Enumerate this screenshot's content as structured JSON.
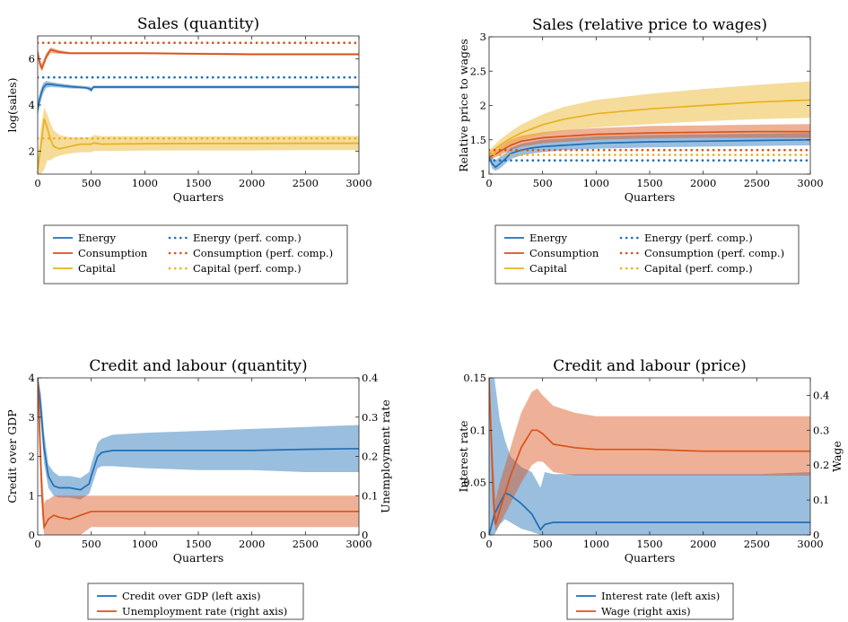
{
  "colors": {
    "energy": "#1f6fb5",
    "consumption": "#d95319",
    "capital": "#e8b120"
  },
  "chart_data": [
    {
      "type": "line",
      "title": "Sales (quantity)",
      "xlabel": "Quarters",
      "ylabel": "log(sales)",
      "xlim": [
        0,
        3000
      ],
      "ylim": [
        1,
        7
      ],
      "xticks": [
        0,
        500,
        1000,
        1500,
        2000,
        2500,
        3000
      ],
      "yticks": [
        2,
        4,
        6
      ],
      "grid": false,
      "legend_position": "below",
      "series": [
        {
          "name": "Energy",
          "color": "#1f6fb5",
          "style": "solid",
          "x": [
            0,
            20,
            50,
            80,
            120,
            200,
            300,
            450,
            490,
            500,
            520,
            700,
            1000,
            1500,
            2000,
            2500,
            3000
          ],
          "y": [
            3.8,
            4.3,
            4.75,
            4.9,
            4.9,
            4.85,
            4.8,
            4.75,
            4.7,
            4.65,
            4.78,
            4.78,
            4.78,
            4.78,
            4.78,
            4.78,
            4.78
          ],
          "band_low": [
            3.5,
            4.0,
            4.5,
            4.75,
            4.78,
            4.76,
            4.72,
            4.7,
            4.6,
            4.55,
            4.72,
            4.72,
            4.72,
            4.72,
            4.72,
            4.72,
            4.72
          ],
          "band_high": [
            4.1,
            4.55,
            4.95,
            5.05,
            5.0,
            4.94,
            4.88,
            4.82,
            4.8,
            4.75,
            4.84,
            4.84,
            4.84,
            4.84,
            4.84,
            4.84,
            4.84
          ]
        },
        {
          "name": "Consumption",
          "color": "#d95319",
          "style": "solid",
          "x": [
            0,
            20,
            40,
            80,
            120,
            200,
            300,
            500,
            1000,
            1500,
            2000,
            2500,
            3000
          ],
          "y": [
            6.3,
            5.8,
            5.6,
            6.1,
            6.4,
            6.3,
            6.25,
            6.25,
            6.25,
            6.22,
            6.2,
            6.2,
            6.2
          ],
          "band_low": [
            6.1,
            5.6,
            5.45,
            5.95,
            6.25,
            6.22,
            6.2,
            6.2,
            6.2,
            6.18,
            6.16,
            6.16,
            6.16
          ],
          "band_high": [
            6.5,
            6.0,
            5.8,
            6.25,
            6.5,
            6.38,
            6.3,
            6.3,
            6.3,
            6.27,
            6.25,
            6.25,
            6.25
          ]
        },
        {
          "name": "Capital",
          "color": "#e8b120",
          "style": "solid",
          "x": [
            0,
            30,
            60,
            90,
            120,
            150,
            200,
            300,
            400,
            500,
            520,
            600,
            1000,
            1500,
            2000,
            2500,
            3000
          ],
          "y": [
            1.2,
            2.2,
            3.4,
            3.0,
            2.5,
            2.2,
            2.1,
            2.2,
            2.3,
            2.3,
            2.35,
            2.3,
            2.32,
            2.33,
            2.33,
            2.34,
            2.34
          ],
          "band_low": [
            1.0,
            1.0,
            1.2,
            1.6,
            1.6,
            1.7,
            1.8,
            1.9,
            1.95,
            1.95,
            2.0,
            2.0,
            2.02,
            2.03,
            2.03,
            2.04,
            2.04
          ],
          "band_high": [
            1.6,
            3.0,
            3.9,
            3.6,
            3.2,
            2.9,
            2.7,
            2.6,
            2.6,
            2.6,
            2.7,
            2.65,
            2.65,
            2.65,
            2.65,
            2.66,
            2.66
          ]
        },
        {
          "name": "Energy (perf. comp.)",
          "color": "#1f6fb5",
          "style": "dotted",
          "x": [
            0,
            3000
          ],
          "y": [
            5.2,
            5.2
          ]
        },
        {
          "name": "Consumption (perf. comp.)",
          "color": "#d95319",
          "style": "dotted",
          "x": [
            0,
            3000
          ],
          "y": [
            6.7,
            6.7
          ]
        },
        {
          "name": "Capital (perf. comp.)",
          "color": "#e8b120",
          "style": "dotted",
          "x": [
            0,
            3000
          ],
          "y": [
            2.55,
            2.55
          ]
        }
      ]
    },
    {
      "type": "line",
      "title": "Sales (relative price to wages)",
      "xlabel": "Quarters",
      "ylabel": "Relative price to wages",
      "xlim": [
        0,
        3000
      ],
      "ylim": [
        1,
        3
      ],
      "xticks": [
        0,
        500,
        1000,
        1500,
        2000,
        2500,
        3000
      ],
      "yticks": [
        1,
        1.5,
        2,
        2.5,
        3
      ],
      "grid": false,
      "legend_position": "below",
      "series": [
        {
          "name": "Energy",
          "color": "#1f6fb5",
          "style": "solid",
          "x": [
            0,
            30,
            60,
            100,
            150,
            200,
            300,
            400,
            500,
            700,
            1000,
            1500,
            2000,
            2500,
            3000
          ],
          "y": [
            1.25,
            1.15,
            1.1,
            1.15,
            1.22,
            1.3,
            1.35,
            1.38,
            1.4,
            1.42,
            1.45,
            1.47,
            1.48,
            1.49,
            1.5
          ],
          "band_low": [
            1.2,
            1.08,
            1.05,
            1.08,
            1.15,
            1.22,
            1.27,
            1.3,
            1.32,
            1.35,
            1.37,
            1.39,
            1.4,
            1.41,
            1.42
          ],
          "band_high": [
            1.32,
            1.25,
            1.2,
            1.25,
            1.3,
            1.38,
            1.44,
            1.47,
            1.5,
            1.52,
            1.55,
            1.57,
            1.58,
            1.59,
            1.6
          ]
        },
        {
          "name": "Consumption",
          "color": "#d95319",
          "style": "solid",
          "x": [
            0,
            50,
            100,
            200,
            300,
            500,
            700,
            1000,
            1500,
            2000,
            2500,
            3000
          ],
          "y": [
            1.25,
            1.28,
            1.33,
            1.42,
            1.48,
            1.53,
            1.55,
            1.58,
            1.6,
            1.61,
            1.62,
            1.62
          ],
          "band_low": [
            1.22,
            1.24,
            1.27,
            1.35,
            1.4,
            1.45,
            1.47,
            1.5,
            1.52,
            1.53,
            1.53,
            1.53
          ],
          "band_high": [
            1.3,
            1.33,
            1.4,
            1.5,
            1.56,
            1.61,
            1.64,
            1.67,
            1.7,
            1.71,
            1.72,
            1.73
          ]
        },
        {
          "name": "Capital",
          "color": "#e8b120",
          "style": "solid",
          "x": [
            0,
            50,
            100,
            200,
            300,
            500,
            700,
            1000,
            1500,
            2000,
            2500,
            3000
          ],
          "y": [
            1.3,
            1.36,
            1.42,
            1.52,
            1.6,
            1.72,
            1.8,
            1.88,
            1.95,
            2.0,
            2.05,
            2.08
          ],
          "band_low": [
            1.26,
            1.3,
            1.35,
            1.44,
            1.5,
            1.58,
            1.63,
            1.68,
            1.73,
            1.77,
            1.8,
            1.82
          ],
          "band_high": [
            1.35,
            1.42,
            1.5,
            1.62,
            1.72,
            1.87,
            1.98,
            2.08,
            2.17,
            2.24,
            2.3,
            2.35
          ]
        },
        {
          "name": "Energy (perf. comp.)",
          "color": "#1f6fb5",
          "style": "dotted",
          "x": [
            0,
            3000
          ],
          "y": [
            1.2,
            1.2
          ]
        },
        {
          "name": "Consumption (perf. comp.)",
          "color": "#d95319",
          "style": "dotted",
          "x": [
            0,
            3000
          ],
          "y": [
            1.35,
            1.35
          ]
        },
        {
          "name": "Capital (perf. comp.)",
          "color": "#e8b120",
          "style": "dotted",
          "x": [
            0,
            3000
          ],
          "y": [
            1.28,
            1.28
          ]
        }
      ]
    },
    {
      "type": "line",
      "title": "Credit and labour (quantity)",
      "xlabel": "Quarters",
      "ylabel": "Credit over GDP",
      "y2label": "Unemployment rate",
      "xlim": [
        0,
        3000
      ],
      "ylim": [
        0,
        4
      ],
      "y2lim": [
        0,
        0.4
      ],
      "xticks": [
        0,
        500,
        1000,
        1500,
        2000,
        2500,
        3000
      ],
      "yticks": [
        0,
        1,
        2,
        3,
        4
      ],
      "y2ticks": [
        0,
        0.1,
        0.2,
        0.3,
        0.4
      ],
      "grid": false,
      "legend_position": "below",
      "series": [
        {
          "name": "Credit over GDP (left axis)",
          "axis": "left",
          "color": "#1f6fb5",
          "style": "solid",
          "x": [
            0,
            30,
            60,
            100,
            150,
            200,
            300,
            400,
            480,
            500,
            560,
            600,
            700,
            1000,
            1500,
            2000,
            2500,
            3000
          ],
          "y": [
            4.0,
            3.2,
            2.2,
            1.5,
            1.25,
            1.2,
            1.2,
            1.15,
            1.3,
            1.5,
            2.0,
            2.1,
            2.15,
            2.15,
            2.15,
            2.15,
            2.18,
            2.2
          ],
          "band_low": [
            3.8,
            2.8,
            1.8,
            1.2,
            1.0,
            0.95,
            0.95,
            0.9,
            1.05,
            1.2,
            1.7,
            1.75,
            1.75,
            1.7,
            1.65,
            1.65,
            1.6,
            1.6
          ],
          "band_high": [
            4.0,
            3.6,
            2.6,
            1.8,
            1.6,
            1.5,
            1.5,
            1.45,
            1.6,
            1.8,
            2.35,
            2.45,
            2.55,
            2.6,
            2.65,
            2.7,
            2.75,
            2.8
          ]
        },
        {
          "name": "Unemployment rate (right axis)",
          "axis": "right",
          "color": "#d95319",
          "style": "solid",
          "x": [
            0,
            20,
            40,
            60,
            80,
            100,
            150,
            200,
            300,
            400,
            500,
            550,
            600,
            1000,
            1500,
            2000,
            2500,
            3000
          ],
          "y": [
            0.4,
            0.25,
            0.1,
            0.02,
            0.03,
            0.04,
            0.05,
            0.045,
            0.04,
            0.05,
            0.06,
            0.06,
            0.06,
            0.06,
            0.06,
            0.06,
            0.06,
            0.06
          ],
          "band_low": [
            0.35,
            0.18,
            0.05,
            0.0,
            0.0,
            0.0,
            0.0,
            0.0,
            0.0,
            0.0,
            0.02,
            0.02,
            0.02,
            0.02,
            0.02,
            0.02,
            0.02,
            0.02
          ],
          "band_high": [
            0.4,
            0.32,
            0.16,
            0.08,
            0.09,
            0.09,
            0.1,
            0.1,
            0.1,
            0.1,
            0.1,
            0.1,
            0.1,
            0.1,
            0.1,
            0.1,
            0.1,
            0.1
          ]
        }
      ]
    },
    {
      "type": "line",
      "title": "Credit and labour (price)",
      "xlabel": "Quarters",
      "ylabel": "Interest rate",
      "y2label": "Wage",
      "xlim": [
        0,
        3000
      ],
      "ylim": [
        0,
        0.15
      ],
      "y2lim": [
        0,
        0.45
      ],
      "xticks": [
        0,
        500,
        1000,
        1500,
        2000,
        2500,
        3000
      ],
      "yticks": [
        0,
        0.05,
        0.1,
        0.15
      ],
      "y2ticks": [
        0,
        0.1,
        0.2,
        0.3,
        0.4
      ],
      "grid": false,
      "legend_position": "below",
      "series": [
        {
          "name": "Interest rate (left axis)",
          "axis": "left",
          "color": "#1f6fb5",
          "style": "solid",
          "x": [
            0,
            50,
            100,
            150,
            200,
            300,
            400,
            480,
            520,
            600,
            1000,
            1500,
            2000,
            2500,
            3000
          ],
          "y": [
            0.0,
            0.02,
            0.03,
            0.04,
            0.038,
            0.03,
            0.02,
            0.005,
            0.01,
            0.012,
            0.012,
            0.012,
            0.012,
            0.012,
            0.012
          ],
          "band_low": [
            0.0,
            0.0,
            0.01,
            0.015,
            0.012,
            0.006,
            0.003,
            0.0,
            0.0,
            0.0,
            0.0,
            0.0,
            0.0,
            0.0,
            0.0
          ],
          "band_high": [
            0.15,
            0.15,
            0.11,
            0.09,
            0.075,
            0.065,
            0.06,
            0.045,
            0.06,
            0.058,
            0.058,
            0.058,
            0.058,
            0.058,
            0.06
          ]
        },
        {
          "name": "Wage (right axis)",
          "axis": "right",
          "color": "#d95319",
          "style": "solid",
          "x": [
            0,
            40,
            60,
            100,
            200,
            300,
            400,
            450,
            500,
            600,
            800,
            1000,
            1500,
            2000,
            2500,
            3000
          ],
          "y": [
            0.45,
            0.1,
            0.03,
            0.07,
            0.17,
            0.25,
            0.3,
            0.3,
            0.29,
            0.26,
            0.25,
            0.245,
            0.245,
            0.24,
            0.24,
            0.24
          ],
          "band_low": [
            0.4,
            0.05,
            0.01,
            0.03,
            0.09,
            0.15,
            0.2,
            0.21,
            0.21,
            0.18,
            0.17,
            0.17,
            0.17,
            0.17,
            0.17,
            0.17
          ],
          "band_high": [
            0.45,
            0.2,
            0.1,
            0.15,
            0.25,
            0.35,
            0.41,
            0.42,
            0.4,
            0.37,
            0.35,
            0.34,
            0.34,
            0.34,
            0.34,
            0.34
          ]
        }
      ]
    }
  ]
}
